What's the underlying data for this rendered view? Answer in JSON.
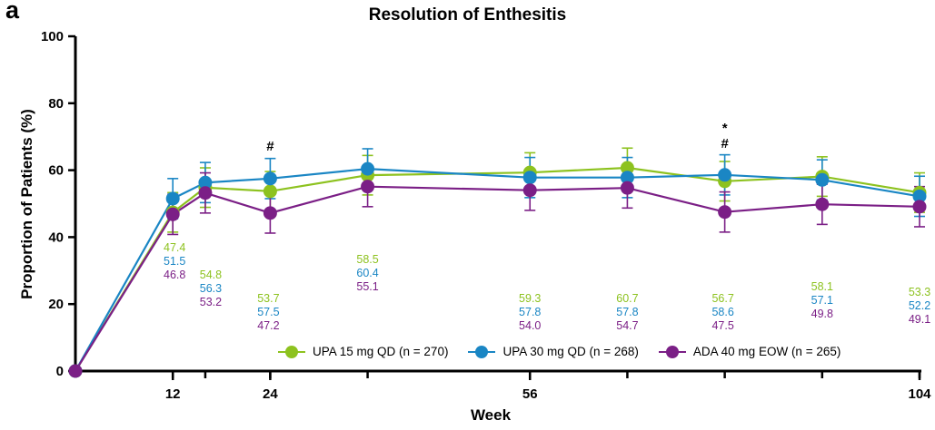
{
  "panel_label": "a",
  "chart_data": {
    "type": "line",
    "title": "Resolution of Enthesitis",
    "xlabel": "Week",
    "ylabel": "Proportion of Patients (%)",
    "xlim": [
      0,
      104
    ],
    "ylim": [
      0,
      100
    ],
    "x_ticks": [
      12,
      24,
      56,
      104
    ],
    "y_ticks": [
      0,
      20,
      40,
      60,
      80,
      100
    ],
    "legend_position": "bottom-right",
    "x": [
      0,
      12,
      16,
      24,
      36,
      56,
      68,
      80,
      92,
      104
    ],
    "series": [
      {
        "name": "UPA 15 mg QD (n = 270)",
        "color": "#8dc21f",
        "values": [
          0,
          47.4,
          54.8,
          53.7,
          58.5,
          59.3,
          60.7,
          56.7,
          58.1,
          53.3
        ],
        "err_high": [
          0,
          53.3,
          60.7,
          59.6,
          64.4,
          65.2,
          66.6,
          62.6,
          64.0,
          59.2
        ],
        "err_low": [
          0,
          41.5,
          48.9,
          47.8,
          52.6,
          53.4,
          54.8,
          50.8,
          52.2,
          47.4
        ]
      },
      {
        "name": "UPA 30 mg QD (n = 268)",
        "color": "#1a86c4",
        "values": [
          0,
          51.5,
          56.3,
          57.5,
          60.4,
          57.8,
          57.8,
          58.6,
          57.1,
          52.2
        ],
        "err_high": [
          0,
          57.5,
          62.3,
          63.5,
          66.4,
          63.8,
          63.8,
          64.6,
          63.1,
          58.2
        ],
        "err_low": [
          0,
          45.5,
          50.3,
          51.5,
          54.4,
          51.8,
          51.8,
          52.6,
          51.1,
          46.2
        ]
      },
      {
        "name": "ADA 40 mg EOW (n = 265)",
        "color": "#7b1f86",
        "values": [
          0,
          46.8,
          53.2,
          47.2,
          55.1,
          54.0,
          54.7,
          47.5,
          49.8,
          49.1
        ],
        "err_high": [
          0,
          52.8,
          59.2,
          53.2,
          61.1,
          60.0,
          60.7,
          53.5,
          55.8,
          55.1
        ],
        "err_low": [
          0,
          40.8,
          47.2,
          41.2,
          49.1,
          48.0,
          48.7,
          41.5,
          43.8,
          43.1
        ]
      }
    ],
    "data_labels": [
      {
        "x": 12,
        "texts": [
          "47.4",
          "51.5",
          "46.8"
        ]
      },
      {
        "x": 16,
        "texts": [
          "54.8",
          "56.3",
          "53.2"
        ]
      },
      {
        "x": 24,
        "texts": [
          "53.7",
          "57.5",
          "47.2"
        ]
      },
      {
        "x": 36,
        "texts": [
          "58.5",
          "60.4",
          "55.1"
        ]
      },
      {
        "x": 56,
        "texts": [
          "59.3",
          "57.8",
          "54.0"
        ]
      },
      {
        "x": 68,
        "texts": [
          "60.7",
          "57.8",
          "54.7"
        ]
      },
      {
        "x": 80,
        "texts": [
          "56.7",
          "58.6",
          "47.5"
        ]
      },
      {
        "x": 92,
        "texts": [
          "58.1",
          "57.1",
          "49.8"
        ]
      },
      {
        "x": 104,
        "texts": [
          "53.3",
          "52.2",
          "49.1"
        ]
      }
    ],
    "significance_marks": [
      {
        "x": 24,
        "lines": [
          "#"
        ]
      },
      {
        "x": 80,
        "lines": [
          "*",
          "#"
        ]
      }
    ]
  }
}
